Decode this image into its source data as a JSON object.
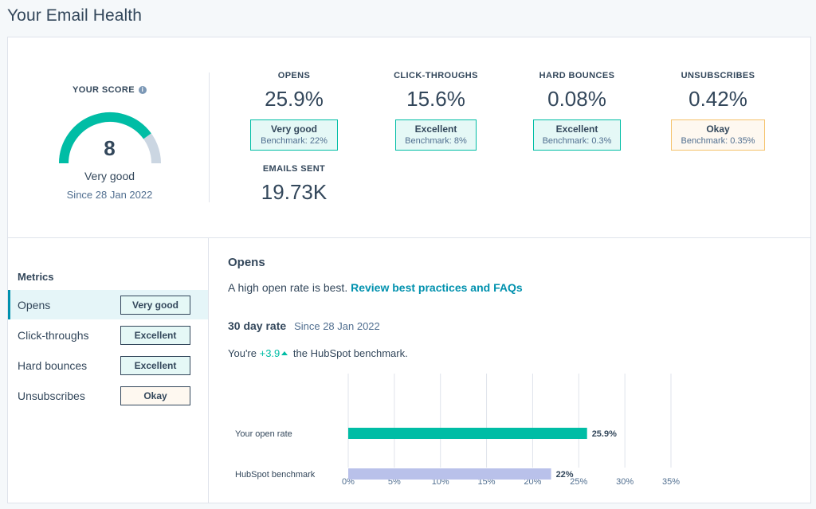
{
  "page": {
    "title": "Your Email Health"
  },
  "score": {
    "label": "YOUR SCORE",
    "info_icon": "info-icon",
    "value": "8",
    "value_fraction": 0.8,
    "rating": "Very good",
    "since": "Since 28 Jan 2022",
    "colors": {
      "fill": "#00bda5",
      "track": "#cbd6e2"
    }
  },
  "stats": {
    "opens": {
      "title": "OPENS",
      "value": "25.9%",
      "rating": "Very good",
      "benchmark": "Benchmark: 22%"
    },
    "clicks": {
      "title": "CLICK-THROUGHS",
      "value": "15.6%",
      "rating": "Excellent",
      "benchmark": "Benchmark: 8%"
    },
    "bounces": {
      "title": "HARD BOUNCES",
      "value": "0.08%",
      "rating": "Excellent",
      "benchmark": "Benchmark: 0.3%"
    },
    "unsubs": {
      "title": "UNSUBSCRIBES",
      "value": "0.42%",
      "rating": "Okay",
      "benchmark": "Benchmark: 0.35%"
    },
    "sent": {
      "title": "EMAILS SENT",
      "value": "19.73K"
    }
  },
  "sidebar": {
    "heading": "Metrics",
    "items": [
      {
        "label": "Opens",
        "badge": "Very good",
        "active": true
      },
      {
        "label": "Click-throughs",
        "badge": "Excellent"
      },
      {
        "label": "Hard bounces",
        "badge": "Excellent"
      },
      {
        "label": "Unsubscribes",
        "badge": "Okay"
      }
    ]
  },
  "detail": {
    "title": "Opens",
    "description": "A high open rate is best.",
    "link": "Review best practices and FAQs",
    "rate_label": "30 day rate",
    "rate_since": "Since 28 Jan 2022",
    "bench_prefix": "You're",
    "bench_delta": "+3.9",
    "bench_suffix": "the HubSpot benchmark."
  },
  "colors": {
    "teal": "#00bda5",
    "teal_bg": "#e5f8f6",
    "orange_border": "#f5c26b",
    "orange_bg": "#fef8f0",
    "link": "#0091ae",
    "benchmark_bar": "#b9c1ea"
  },
  "chart_data": {
    "type": "bar",
    "orientation": "horizontal",
    "categories": [
      "Your open rate",
      "HubSpot benchmark"
    ],
    "values": [
      25.9,
      22
    ],
    "value_labels": [
      "25.9%",
      "22%"
    ],
    "colors": [
      "#00bda5",
      "#b9c1ea"
    ],
    "xlim": [
      0,
      35
    ],
    "xticks": [
      "0%",
      "5%",
      "10%",
      "15%",
      "20%",
      "25%",
      "30%",
      "35%"
    ],
    "xtick_values": [
      0,
      5,
      10,
      15,
      20,
      25,
      30,
      35
    ],
    "grid": true
  }
}
